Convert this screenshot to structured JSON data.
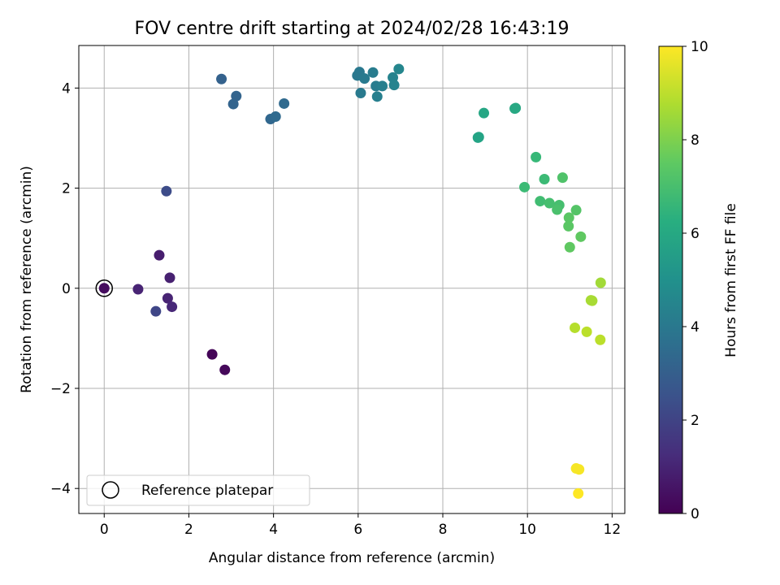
{
  "chart_data": {
    "type": "scatter",
    "title": "FOV centre drift starting at 2024/02/28 16:43:19",
    "xlabel": "Angular distance from reference (arcmin)",
    "ylabel": "Rotation from reference (arcmin)",
    "xlim": [
      -0.6,
      12.3
    ],
    "ylim": [
      -4.5,
      4.85
    ],
    "xticks": [
      0,
      2,
      4,
      6,
      8,
      10,
      12
    ],
    "yticks": [
      -4,
      -2,
      0,
      2,
      4
    ],
    "grid": true,
    "legend": {
      "label": "Reference platepar",
      "placement": "lower-left"
    },
    "reference_point": {
      "x": 0,
      "y": 0
    },
    "colorbar": {
      "label": "Hours from first FF file",
      "min": 0,
      "max": 10,
      "ticks": [
        0,
        2,
        4,
        6,
        8,
        10
      ],
      "colormap": "viridis"
    },
    "points": [
      {
        "x": 0.0,
        "y": 0.0,
        "h": 0.3
      },
      {
        "x": 2.55,
        "y": -1.32,
        "h": 0.1
      },
      {
        "x": 2.85,
        "y": -1.63,
        "h": 0.2
      },
      {
        "x": 0.8,
        "y": -0.02,
        "h": 1.0
      },
      {
        "x": 1.3,
        "y": 0.66,
        "h": 0.8
      },
      {
        "x": 1.55,
        "y": 0.21,
        "h": 0.9
      },
      {
        "x": 1.5,
        "y": -0.2,
        "h": 1.0
      },
      {
        "x": 1.6,
        "y": -0.37,
        "h": 1.1
      },
      {
        "x": 1.22,
        "y": -0.46,
        "h": 2.1
      },
      {
        "x": 1.47,
        "y": 1.94,
        "h": 2.3
      },
      {
        "x": 2.77,
        "y": 4.18,
        "h": 3.1
      },
      {
        "x": 3.12,
        "y": 3.84,
        "h": 3.2
      },
      {
        "x": 3.05,
        "y": 3.68,
        "h": 3.2
      },
      {
        "x": 3.93,
        "y": 3.38,
        "h": 3.3
      },
      {
        "x": 4.05,
        "y": 3.43,
        "h": 3.4
      },
      {
        "x": 4.25,
        "y": 3.69,
        "h": 3.4
      },
      {
        "x": 5.98,
        "y": 4.25,
        "h": 4.0
      },
      {
        "x": 6.03,
        "y": 4.32,
        "h": 4.0
      },
      {
        "x": 6.15,
        "y": 4.19,
        "h": 4.1
      },
      {
        "x": 6.06,
        "y": 3.9,
        "h": 4.1
      },
      {
        "x": 6.35,
        "y": 4.31,
        "h": 4.2
      },
      {
        "x": 6.42,
        "y": 4.04,
        "h": 4.2
      },
      {
        "x": 6.57,
        "y": 4.04,
        "h": 4.3
      },
      {
        "x": 6.45,
        "y": 3.83,
        "h": 4.3
      },
      {
        "x": 6.82,
        "y": 4.21,
        "h": 4.5
      },
      {
        "x": 6.85,
        "y": 4.06,
        "h": 4.5
      },
      {
        "x": 6.96,
        "y": 4.38,
        "h": 4.6
      },
      {
        "x": 8.83,
        "y": 3.01,
        "h": 5.8
      },
      {
        "x": 8.85,
        "y": 3.02,
        "h": 5.8
      },
      {
        "x": 8.97,
        "y": 3.5,
        "h": 5.9
      },
      {
        "x": 9.7,
        "y": 3.59,
        "h": 6.0
      },
      {
        "x": 9.72,
        "y": 3.6,
        "h": 6.0
      },
      {
        "x": 10.2,
        "y": 2.62,
        "h": 6.7
      },
      {
        "x": 10.4,
        "y": 2.18,
        "h": 6.8
      },
      {
        "x": 9.93,
        "y": 2.02,
        "h": 6.8
      },
      {
        "x": 10.3,
        "y": 1.74,
        "h": 6.9
      },
      {
        "x": 10.52,
        "y": 1.7,
        "h": 7.0
      },
      {
        "x": 10.75,
        "y": 1.66,
        "h": 7.0
      },
      {
        "x": 10.7,
        "y": 1.57,
        "h": 7.1
      },
      {
        "x": 10.83,
        "y": 2.21,
        "h": 7.2
      },
      {
        "x": 11.15,
        "y": 1.56,
        "h": 7.3
      },
      {
        "x": 10.98,
        "y": 1.41,
        "h": 7.4
      },
      {
        "x": 10.97,
        "y": 1.24,
        "h": 7.4
      },
      {
        "x": 11.26,
        "y": 1.03,
        "h": 7.5
      },
      {
        "x": 11.0,
        "y": 0.82,
        "h": 7.5
      },
      {
        "x": 11.73,
        "y": 0.11,
        "h": 8.6
      },
      {
        "x": 11.5,
        "y": -0.24,
        "h": 8.7
      },
      {
        "x": 11.53,
        "y": -0.25,
        "h": 8.7
      },
      {
        "x": 11.12,
        "y": -0.79,
        "h": 8.9
      },
      {
        "x": 11.4,
        "y": -0.87,
        "h": 9.0
      },
      {
        "x": 11.72,
        "y": -1.03,
        "h": 9.0
      },
      {
        "x": 11.15,
        "y": -3.6,
        "h": 9.9
      },
      {
        "x": 11.22,
        "y": -3.62,
        "h": 9.9
      },
      {
        "x": 11.2,
        "y": -4.1,
        "h": 10.0
      }
    ]
  }
}
